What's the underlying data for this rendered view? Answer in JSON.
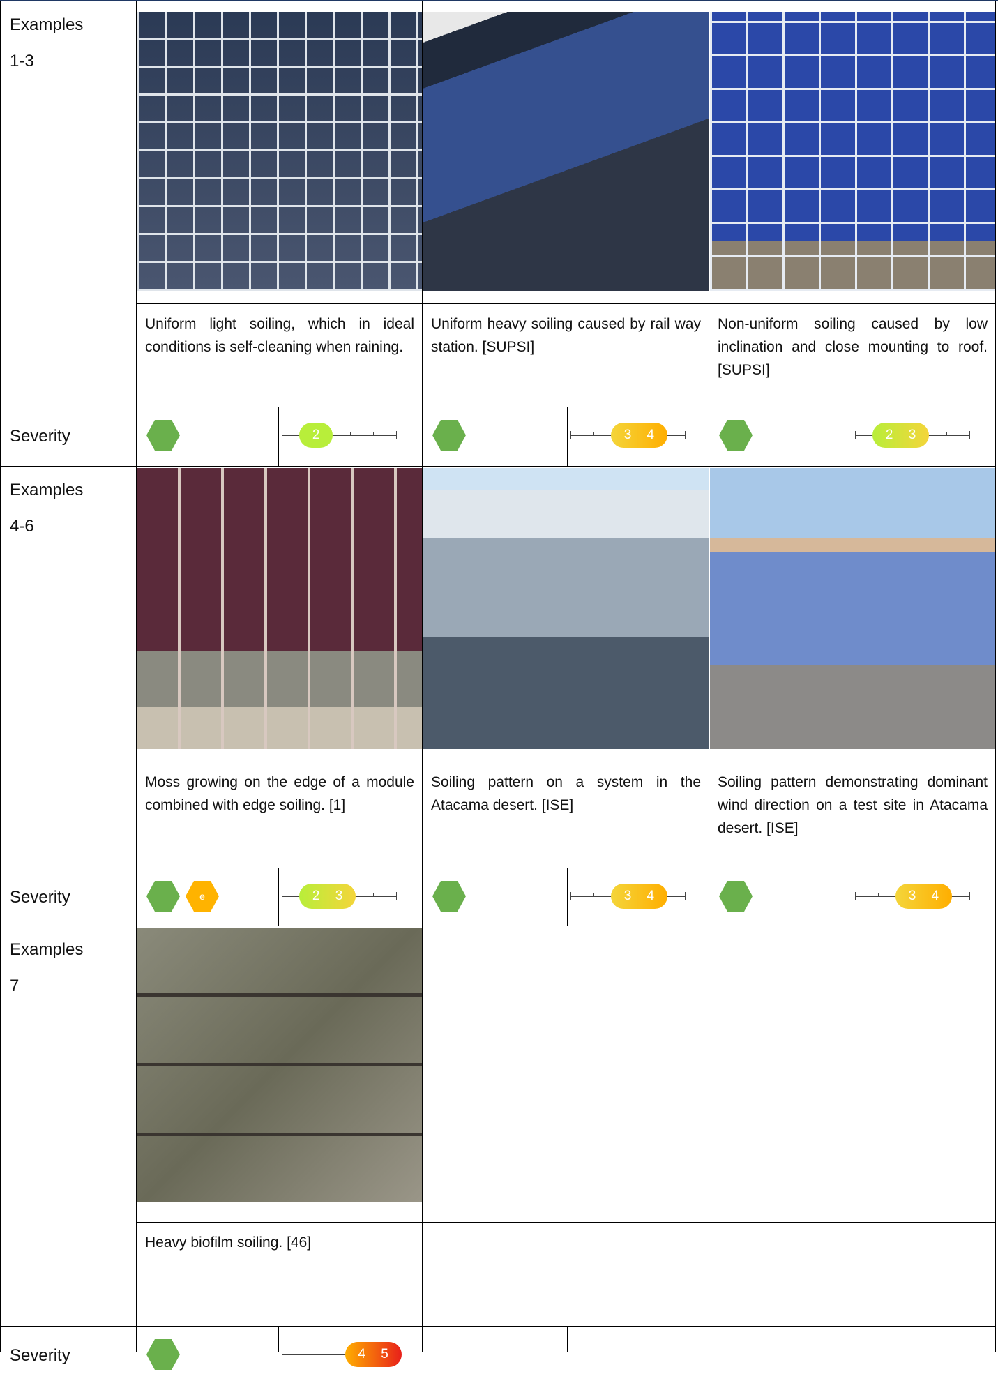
{
  "rows": [
    {
      "label": [
        "Examples",
        "1-3"
      ],
      "captions": [
        "Uniform light soiling, which in ideal conditions is self-cleaning when raining.",
        "Uniform heavy soiling caused by rail way station. [SUPSI]",
        "Non-uniform soiling caused by low inclination and close mounting to roof. [SUPSI]"
      ],
      "severity_label": "Severity",
      "severity": [
        {
          "levels": [
            2
          ]
        },
        {
          "levels": [
            3,
            4
          ]
        },
        {
          "levels": [
            2,
            3
          ]
        }
      ]
    },
    {
      "label": [
        "Examples",
        "4-6"
      ],
      "captions": [
        "Moss growing on the edge of a module combined with edge soiling. [1]",
        "Soiling pattern on a system in the Atacama desert. [ISE]",
        "Soiling pattern demonstrating dominant wind direction on a test site in Atacama desert. [ISE]"
      ],
      "severity_label": "Severity",
      "severity": [
        {
          "tags": [
            "e"
          ],
          "levels": [
            2,
            3
          ]
        },
        {
          "levels": [
            3,
            4
          ]
        },
        {
          "levels": [
            3,
            4
          ]
        }
      ]
    },
    {
      "label": [
        "Examples",
        "7"
      ],
      "captions": [
        "Heavy biofilm soiling. [46]"
      ],
      "severity_label": "Severity",
      "severity": [
        {
          "levels": [
            4,
            5
          ]
        }
      ]
    }
  ],
  "scale_range": [
    1,
    5
  ]
}
